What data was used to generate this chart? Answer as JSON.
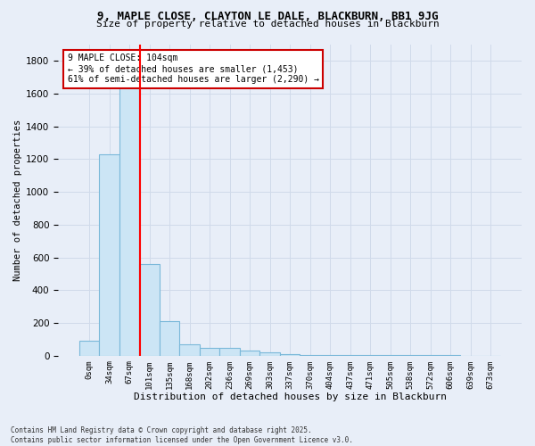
{
  "title_line1": "9, MAPLE CLOSE, CLAYTON LE DALE, BLACKBURN, BB1 9JG",
  "title_line2": "Size of property relative to detached houses in Blackburn",
  "xlabel": "Distribution of detached houses by size in Blackburn",
  "ylabel": "Number of detached properties",
  "bar_labels": [
    "0sqm",
    "34sqm",
    "67sqm",
    "101sqm",
    "135sqm",
    "168sqm",
    "202sqm",
    "236sqm",
    "269sqm",
    "303sqm",
    "337sqm",
    "370sqm",
    "404sqm",
    "437sqm",
    "471sqm",
    "505sqm",
    "538sqm",
    "572sqm",
    "606sqm",
    "639sqm",
    "673sqm"
  ],
  "bar_heights": [
    90,
    1230,
    1680,
    560,
    210,
    70,
    50,
    45,
    30,
    20,
    10,
    5,
    5,
    5,
    5,
    5,
    5,
    5,
    5,
    0,
    0
  ],
  "bar_color": "#cce5f5",
  "bar_edge_color": "#7ab8d9",
  "grid_color": "#d0daea",
  "background_color": "#e8eef8",
  "red_line_x": 2.55,
  "annotation_text": "9 MAPLE CLOSE: 104sqm\n← 39% of detached houses are smaller (1,453)\n61% of semi-detached houses are larger (2,290) →",
  "annotation_box_color": "#ffffff",
  "annotation_border_color": "#cc0000",
  "footer_line1": "Contains HM Land Registry data © Crown copyright and database right 2025.",
  "footer_line2": "Contains public sector information licensed under the Open Government Licence v3.0.",
  "ylim": [
    0,
    1900
  ],
  "yticks": [
    0,
    200,
    400,
    600,
    800,
    1000,
    1200,
    1400,
    1600,
    1800
  ]
}
